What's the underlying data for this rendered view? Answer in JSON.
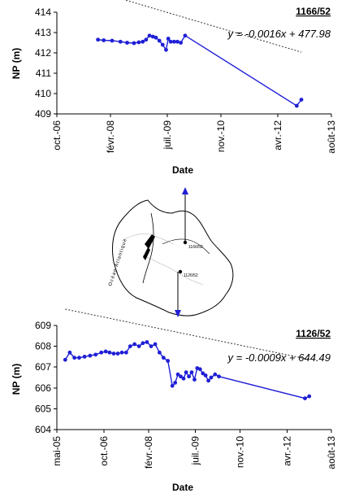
{
  "chart_data": [
    {
      "type": "scatter",
      "well_label": "1166/52",
      "equation": "y = -0.0016x + 477.98",
      "ylabel": "NP (m)",
      "xlabel": "Date",
      "ylim": [
        409,
        414
      ],
      "y_ticks": [
        "409",
        "410",
        "411",
        "412",
        "413",
        "414"
      ],
      "x_ticks": [
        "oct.-06",
        "févr.-08",
        "juil.-09",
        "nov.-10",
        "avr.-12",
        "août-13"
      ],
      "x_tick_dates": [
        "2006-10-01",
        "2008-02-01",
        "2009-07-01",
        "2010-11-01",
        "2012-04-01",
        "2013-08-01"
      ],
      "trend": {
        "slope_per_day": -0.0016,
        "intercept": 477.98
      },
      "series": [
        {
          "x": [
            "2007-10-10",
            "2007-12-01",
            "2008-02-15",
            "2008-05-01",
            "2008-07-01",
            "2008-09-01",
            "2008-10-15",
            "2008-11-20",
            "2008-12-20",
            "2009-01-20",
            "2009-02-20",
            "2009-03-20",
            "2009-04-20",
            "2009-05-20",
            "2009-06-20",
            "2009-07-10",
            "2009-08-01",
            "2009-09-01",
            "2009-10-01",
            "2009-11-01",
            "2009-12-10",
            "2012-09-20",
            "2012-11-01"
          ],
          "y": [
            412.65,
            412.62,
            412.6,
            412.55,
            412.5,
            412.48,
            412.52,
            412.55,
            412.65,
            412.85,
            412.8,
            412.75,
            412.6,
            412.4,
            412.15,
            412.7,
            412.55,
            412.55,
            412.55,
            412.5,
            412.85,
            409.4,
            409.7
          ]
        }
      ]
    },
    {
      "type": "scatter",
      "well_label": "1126/52",
      "equation": "y = -0.0009x + 644.49",
      "ylabel": "NP (m)",
      "xlabel": "Date",
      "ylim": [
        604,
        609
      ],
      "y_ticks": [
        "604",
        "605",
        "606",
        "607",
        "608",
        "609"
      ],
      "x_ticks": [
        "mai-05",
        "oct.-06",
        "févr.-08",
        "juil.-09",
        "nov.-10",
        "avr.-12",
        "août-13"
      ],
      "x_tick_dates": [
        "2005-05-01",
        "2006-10-01",
        "2008-02-01",
        "2009-07-01",
        "2010-11-01",
        "2012-04-01",
        "2013-08-01"
      ],
      "trend": {
        "slope_per_day": -0.0009,
        "intercept": 644.49
      },
      "series": [
        {
          "x": [
            "2005-08-01",
            "2005-09-20",
            "2005-11-10",
            "2006-01-01",
            "2006-03-01",
            "2006-05-01",
            "2006-07-01",
            "2006-09-01",
            "2006-10-20",
            "2006-12-01",
            "2007-01-15",
            "2007-03-01",
            "2007-04-15",
            "2007-06-01",
            "2007-07-15",
            "2007-09-01",
            "2007-10-20",
            "2007-12-01",
            "2008-01-15",
            "2008-03-01",
            "2008-04-15",
            "2008-06-01",
            "2008-07-15",
            "2008-09-01",
            "2008-10-20",
            "2008-11-20",
            "2008-12-20",
            "2009-01-20",
            "2009-02-20",
            "2009-03-20",
            "2009-04-20",
            "2009-05-20",
            "2009-06-20",
            "2009-07-20",
            "2009-08-20",
            "2009-09-20",
            "2009-10-20",
            "2009-11-20",
            "2009-12-20",
            "2010-02-01",
            "2010-03-15",
            "2012-10-15",
            "2012-12-01"
          ],
          "y": [
            607.35,
            607.7,
            607.45,
            607.45,
            607.5,
            607.55,
            607.6,
            607.7,
            607.75,
            607.7,
            607.65,
            607.65,
            607.7,
            607.7,
            608.0,
            608.1,
            608.0,
            608.15,
            608.2,
            608.0,
            608.1,
            607.7,
            607.45,
            607.3,
            606.1,
            606.25,
            606.65,
            606.55,
            606.45,
            606.75,
            606.55,
            606.75,
            606.4,
            606.95,
            606.9,
            606.7,
            606.6,
            606.35,
            606.5,
            606.65,
            606.55,
            605.5,
            605.6
          ]
        }
      ]
    }
  ],
  "map": {
    "ocean_label": "Océan Atlantique",
    "points": [
      "1166/52",
      "1126/52"
    ]
  }
}
